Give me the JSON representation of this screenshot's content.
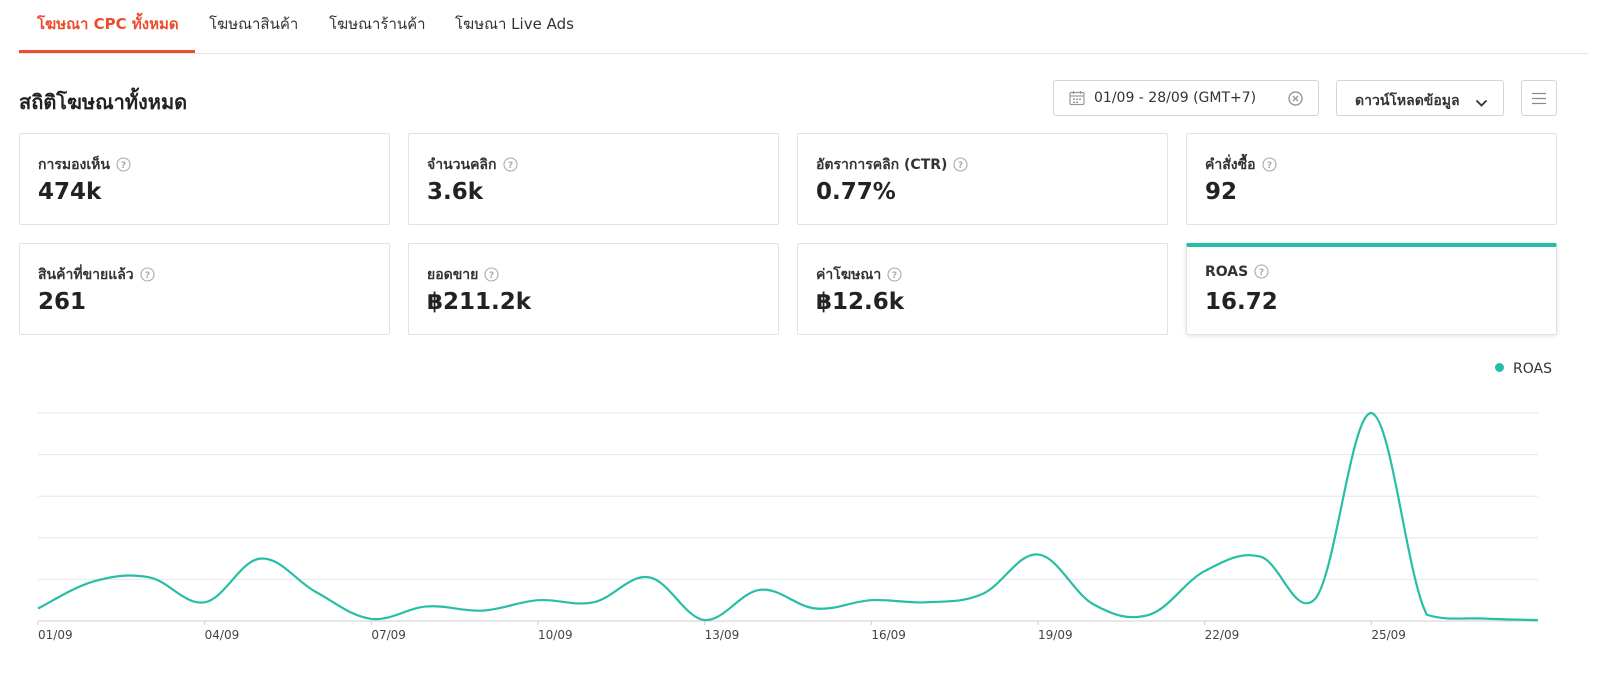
{
  "tabs": [
    {
      "label": "โฆษณา CPC ทั้งหมด",
      "active": true
    },
    {
      "label": "โฆษณาสินค้า",
      "active": false
    },
    {
      "label": "โฆษณาร้านค้า",
      "active": false
    },
    {
      "label": "โฆษณา Live Ads",
      "active": false
    }
  ],
  "header": {
    "title": "สถิติโฆษณาทั้งหมด",
    "date_range": "01/09 - 28/09 (GMT+7)",
    "download_label": "ดาวน์โหลดข้อมูล"
  },
  "metrics": [
    {
      "label": "การมองเห็น",
      "value": "474k"
    },
    {
      "label": "จำนวนคลิก",
      "value": "3.6k"
    },
    {
      "label": "อัตราการคลิก (CTR)",
      "value": "0.77%"
    },
    {
      "label": "คำสั่งซื้อ",
      "value": "92"
    },
    {
      "label": "สินค้าที่ขายแล้ว",
      "value": "261"
    },
    {
      "label": "ยอดขาย",
      "value": "฿211.2k"
    },
    {
      "label": "ค่าโฆษณา",
      "value": "฿12.6k"
    },
    {
      "label": "ROAS",
      "value": "16.72",
      "selected": true
    }
  ],
  "colors": {
    "accent": "#ee4d2d",
    "series": "#26bfa6"
  },
  "chart_data": {
    "type": "line",
    "title": "",
    "xlabel": "",
    "ylabel": "",
    "legend": "top-right",
    "grid": true,
    "y_tick_labels_shown": false,
    "ylim": [
      0,
      5
    ],
    "x_tick_labels": [
      "01/09",
      "04/09",
      "07/09",
      "10/09",
      "13/09",
      "16/09",
      "19/09",
      "22/09",
      "25/09"
    ],
    "x": [
      "01/09",
      "02/09",
      "03/09",
      "04/09",
      "05/09",
      "06/09",
      "07/09",
      "08/09",
      "09/09",
      "10/09",
      "11/09",
      "12/09",
      "13/09",
      "14/09",
      "15/09",
      "16/09",
      "17/09",
      "18/09",
      "19/09",
      "20/09",
      "21/09",
      "22/09",
      "23/09",
      "24/09",
      "25/09",
      "26/09",
      "27/09",
      "28/09"
    ],
    "series": [
      {
        "name": "ROAS",
        "values": [
          0.3,
          0.95,
          1.05,
          0.45,
          1.5,
          0.7,
          0.05,
          0.35,
          0.25,
          0.5,
          0.45,
          1.05,
          0.02,
          0.75,
          0.3,
          0.5,
          0.45,
          0.65,
          1.6,
          0.4,
          0.15,
          1.2,
          1.55,
          0.55,
          5.0,
          0.15,
          0.06,
          0.02
        ]
      }
    ]
  }
}
